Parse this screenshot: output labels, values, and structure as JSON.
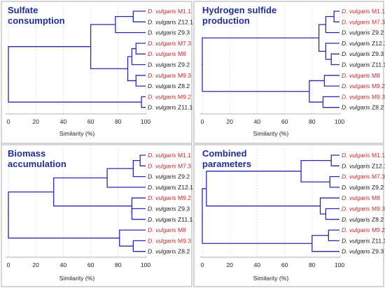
{
  "colors": {
    "red": "#c0272d",
    "black": "#1a1a1a",
    "branch": "#2a2aa8",
    "title": "#1f2f8f"
  },
  "panels": [
    {
      "title_lines": [
        "Sulfate",
        "consumption"
      ],
      "xlabel": "Similarity (%)",
      "xticks": [
        "0",
        "20",
        "40",
        "60",
        "80",
        "100"
      ],
      "leaves": [
        {
          "genus": "D. vulgaris",
          "strain": "M1.1",
          "color": "red"
        },
        {
          "genus": "D. vulgaris",
          "strain": "Z12.1",
          "color": "black"
        },
        {
          "genus": "D. vulgaris",
          "strain": "Z9.3",
          "color": "black"
        },
        {
          "genus": "D. vulgaris",
          "strain": "M7.3",
          "color": "red"
        },
        {
          "genus": "D. vulgaris",
          "strain": "M8",
          "color": "red"
        },
        {
          "genus": "D. vulgaris",
          "strain": "Z9.2",
          "color": "black"
        },
        {
          "genus": "D. vulgaris",
          "strain": "M9.3",
          "color": "red"
        },
        {
          "genus": "D. vulgaris",
          "strain": "Z8.2",
          "color": "black"
        },
        {
          "genus": "D. vulgaris",
          "strain": "M9.2",
          "color": "red"
        },
        {
          "genus": "D. vulgaris",
          "strain": "Z11.1",
          "color": "black"
        }
      ],
      "merges": [
        {
          "a": {
            "leaf": 0
          },
          "b": {
            "leaf": 1
          },
          "similarity": 91
        },
        {
          "a": {
            "node": 0
          },
          "b": {
            "leaf": 2
          },
          "similarity": 78
        },
        {
          "a": {
            "leaf": 3
          },
          "b": {
            "leaf": 4
          },
          "similarity": 93
        },
        {
          "a": {
            "node": 2
          },
          "b": {
            "leaf": 5
          },
          "similarity": 90
        },
        {
          "a": {
            "leaf": 6
          },
          "b": {
            "leaf": 7
          },
          "similarity": 93
        },
        {
          "a": {
            "node": 3
          },
          "b": {
            "node": 4
          },
          "similarity": 87
        },
        {
          "a": {
            "node": 1
          },
          "b": {
            "node": 5
          },
          "similarity": 60
        },
        {
          "a": {
            "leaf": 8
          },
          "b": {
            "leaf": 9
          },
          "similarity": 97
        },
        {
          "a": {
            "node": 6
          },
          "b": {
            "node": 7
          },
          "similarity": 0
        }
      ]
    },
    {
      "title_lines": [
        "Hydrogen sulfide",
        "production"
      ],
      "xlabel": "Similarity (%)",
      "xticks": [
        "0",
        "20",
        "40",
        "60",
        "80",
        "100"
      ],
      "leaves": [
        {
          "genus": "D. vulgaris",
          "strain": "M1.1",
          "color": "red"
        },
        {
          "genus": "D. vulgaris",
          "strain": "M7.3",
          "color": "red"
        },
        {
          "genus": "D. vulgaris",
          "strain": "Z9.2",
          "color": "black"
        },
        {
          "genus": "D. vulgaris",
          "strain": "Z12.1",
          "color": "black"
        },
        {
          "genus": "D. vulgaris",
          "strain": "Z9.3",
          "color": "black"
        },
        {
          "genus": "D. vulgaris",
          "strain": "Z11.1",
          "color": "black"
        },
        {
          "genus": "D. vulgaris",
          "strain": "M8",
          "color": "red"
        },
        {
          "genus": "D. vulgaris",
          "strain": "M9.2",
          "color": "red"
        },
        {
          "genus": "D. vulgaris",
          "strain": "M9.3",
          "color": "red"
        },
        {
          "genus": "D. vulgaris",
          "strain": "Z8.2",
          "color": "black"
        }
      ],
      "merges": [
        {
          "a": {
            "leaf": 0
          },
          "b": {
            "leaf": 1
          },
          "similarity": 96
        },
        {
          "a": {
            "node": 0
          },
          "b": {
            "leaf": 2
          },
          "similarity": 90
        },
        {
          "a": {
            "leaf": 4
          },
          "b": {
            "leaf": 5
          },
          "similarity": 94
        },
        {
          "a": {
            "leaf": 3
          },
          "b": {
            "node": 2
          },
          "similarity": 90
        },
        {
          "a": {
            "node": 1
          },
          "b": {
            "node": 3
          },
          "similarity": 85
        },
        {
          "a": {
            "leaf": 6
          },
          "b": {
            "leaf": 7
          },
          "similarity": 89
        },
        {
          "a": {
            "leaf": 8
          },
          "b": {
            "leaf": 9
          },
          "similarity": 88
        },
        {
          "a": {
            "node": 5
          },
          "b": {
            "node": 6
          },
          "similarity": 78
        },
        {
          "a": {
            "node": 4
          },
          "b": {
            "node": 7
          },
          "similarity": 0
        }
      ]
    },
    {
      "title_lines": [
        "Biomass",
        "accumulation"
      ],
      "xlabel": "Similarity (%)",
      "xticks": [
        "0",
        "20",
        "40",
        "60",
        "80",
        "100"
      ],
      "leaves": [
        {
          "genus": "D. vulgaris",
          "strain": "M1.1",
          "color": "red"
        },
        {
          "genus": "D. vulgaris",
          "strain": "M7.3",
          "color": "red"
        },
        {
          "genus": "D. vulgaris",
          "strain": "Z9.2",
          "color": "black"
        },
        {
          "genus": "D. vulgaris",
          "strain": "Z12.1",
          "color": "black"
        },
        {
          "genus": "D. vulgaris",
          "strain": "M9.2",
          "color": "red"
        },
        {
          "genus": "D. vulgaris",
          "strain": "Z9.3",
          "color": "black"
        },
        {
          "genus": "D. vulgaris",
          "strain": "Z11.1",
          "color": "black"
        },
        {
          "genus": "D. vulgaris",
          "strain": "M8",
          "color": "red"
        },
        {
          "genus": "D. vulgaris",
          "strain": "M9.3",
          "color": "red"
        },
        {
          "genus": "D. vulgaris",
          "strain": "Z8.2",
          "color": "black"
        }
      ],
      "merges": [
        {
          "a": {
            "leaf": 0
          },
          "b": {
            "leaf": 1
          },
          "similarity": 96
        },
        {
          "a": {
            "node": 0
          },
          "b": {
            "leaf": 2
          },
          "similarity": 91
        },
        {
          "a": {
            "node": 1
          },
          "b": {
            "leaf": 3
          },
          "similarity": 72
        },
        {
          "a": {
            "leaf": 5
          },
          "b": {
            "leaf": 6
          },
          "similarity": 90
        },
        {
          "a": {
            "leaf": 4
          },
          "b": {
            "node": 3
          },
          "similarity": 90
        },
        {
          "a": {
            "node": 2
          },
          "b": {
            "node": 4
          },
          "similarity": 33
        },
        {
          "a": {
            "leaf": 8
          },
          "b": {
            "leaf": 9
          },
          "similarity": 91
        },
        {
          "a": {
            "leaf": 7
          },
          "b": {
            "node": 6
          },
          "similarity": 81
        },
        {
          "a": {
            "node": 5
          },
          "b": {
            "node": 7
          },
          "similarity": 0
        }
      ]
    },
    {
      "title_lines": [
        "Combined",
        "parameters"
      ],
      "xlabel": "Similarity (%)",
      "xticks": [
        "0",
        "20",
        "40",
        "60",
        "80",
        "100"
      ],
      "leaves": [
        {
          "genus": "D. vulgaris",
          "strain": "M1.1",
          "color": "red"
        },
        {
          "genus": "D. vulgaris",
          "strain": "Z12.1",
          "color": "black"
        },
        {
          "genus": "D. vulgaris",
          "strain": "M7.3",
          "color": "red"
        },
        {
          "genus": "D. vulgaris",
          "strain": "Z9.2",
          "color": "black"
        },
        {
          "genus": "D. vulgaris",
          "strain": "M8",
          "color": "red"
        },
        {
          "genus": "D. vulgaris",
          "strain": "M9.3",
          "color": "red"
        },
        {
          "genus": "D. vulgaris",
          "strain": "Z8.2",
          "color": "black"
        },
        {
          "genus": "D. vulgaris",
          "strain": "M9.2",
          "color": "red"
        },
        {
          "genus": "D. vulgaris",
          "strain": "Z11.1",
          "color": "black"
        },
        {
          "genus": "D. vulgaris",
          "strain": "Z9.3",
          "color": "black"
        }
      ],
      "merges": [
        {
          "a": {
            "leaf": 0
          },
          "b": {
            "leaf": 1
          },
          "similarity": 94
        },
        {
          "a": {
            "leaf": 2
          },
          "b": {
            "leaf": 3
          },
          "similarity": 93
        },
        {
          "a": {
            "node": 0
          },
          "b": {
            "node": 1
          },
          "similarity": 72
        },
        {
          "a": {
            "leaf": 5
          },
          "b": {
            "leaf": 6
          },
          "similarity": 90
        },
        {
          "a": {
            "leaf": 4
          },
          "b": {
            "node": 3
          },
          "similarity": 86
        },
        {
          "a": {
            "node": 2
          },
          "b": {
            "node": 4
          },
          "similarity": 3
        },
        {
          "a": {
            "leaf": 7
          },
          "b": {
            "leaf": 8
          },
          "similarity": 92
        },
        {
          "a": {
            "node": 6
          },
          "b": {
            "leaf": 9
          },
          "similarity": 80
        },
        {
          "a": {
            "node": 5
          },
          "b": {
            "node": 7
          },
          "similarity": 0
        }
      ]
    }
  ]
}
